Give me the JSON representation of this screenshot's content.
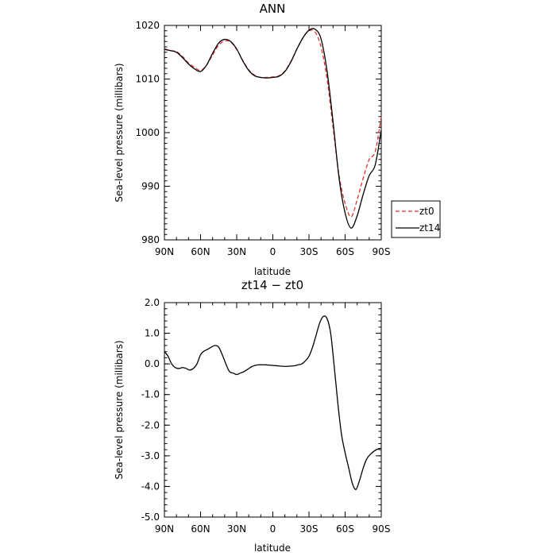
{
  "colors": {
    "zt0": "#e0302a",
    "zt14": "#000000"
  },
  "chart_data": [
    {
      "type": "line",
      "title": "ANN",
      "xlabel": "latitude",
      "ylabel": "Sea-level pressure (millibars)",
      "xlim": [
        90,
        -90
      ],
      "ylim": [
        980,
        1020
      ],
      "xticks": [
        90,
        60,
        30,
        0,
        -30,
        -60,
        -90
      ],
      "xtick_labels": [
        "90N",
        "60N",
        "30N",
        "0",
        "30S",
        "60S",
        "90S"
      ],
      "yticks": [
        980,
        990,
        1000,
        1010,
        1020
      ],
      "ytick_labels": [
        "980",
        "990",
        "1000",
        "1010",
        "1020"
      ],
      "legend": {
        "placement": "right",
        "entries": [
          "zt0",
          "zt14"
        ]
      },
      "series": [
        {
          "name": "zt0",
          "style": "dashed",
          "color": "#e0302a",
          "x": [
            90,
            85,
            80,
            75,
            70,
            65,
            60,
            55,
            50,
            45,
            40,
            35,
            30,
            25,
            20,
            15,
            10,
            5,
            0,
            -5,
            -10,
            -15,
            -20,
            -25,
            -30,
            -35,
            -40,
            -45,
            -50,
            -55,
            -60,
            -65,
            -70,
            -75,
            -80,
            -85,
            -90
          ],
          "y": [
            1015.5,
            1015.3,
            1015.1,
            1014.2,
            1013.0,
            1012.2,
            1011.6,
            1012.6,
            1014.5,
            1016.3,
            1017.1,
            1016.9,
            1015.5,
            1013.5,
            1011.7,
            1010.7,
            1010.3,
            1010.3,
            1010.4,
            1010.6,
            1011.5,
            1013.3,
            1015.6,
            1017.7,
            1019.0,
            1018.8,
            1016.0,
            1010.0,
            1001.0,
            992.0,
            986.8,
            984.3,
            987.5,
            991.5,
            995.0,
            996.5,
            1003.0
          ]
        },
        {
          "name": "zt14",
          "style": "solid",
          "color": "#000000",
          "x": [
            90,
            85,
            80,
            75,
            70,
            65,
            60,
            55,
            50,
            45,
            40,
            35,
            30,
            25,
            20,
            15,
            10,
            5,
            0,
            -5,
            -10,
            -15,
            -20,
            -25,
            -30,
            -35,
            -40,
            -45,
            -50,
            -55,
            -60,
            -65,
            -70,
            -75,
            -80,
            -85,
            -90
          ],
          "y": [
            1015.6,
            1015.3,
            1015.0,
            1014.0,
            1012.8,
            1011.9,
            1011.4,
            1012.6,
            1014.8,
            1016.7,
            1017.4,
            1017.0,
            1015.6,
            1013.4,
            1011.6,
            1010.6,
            1010.3,
            1010.2,
            1010.3,
            1010.5,
            1011.4,
            1013.2,
            1015.6,
            1017.7,
            1019.1,
            1019.3,
            1017.5,
            1011.5,
            1002.0,
            991.5,
            985.0,
            982.2,
            984.5,
            988.5,
            992.0,
            994.0,
            1000.5
          ]
        }
      ]
    },
    {
      "type": "line",
      "title": "zt14 − zt0",
      "xlabel": "latitude",
      "ylabel": "Sea-level pressure (millibars)",
      "xlim": [
        90,
        -90
      ],
      "ylim": [
        -5.0,
        2.0
      ],
      "xticks": [
        90,
        60,
        30,
        0,
        -30,
        -60,
        -90
      ],
      "xtick_labels": [
        "90N",
        "60N",
        "30N",
        "0",
        "30S",
        "60S",
        "90S"
      ],
      "yticks": [
        2.0,
        1.0,
        0.0,
        -1.0,
        -2.0,
        -3.0,
        -4.0,
        -5.0
      ],
      "ytick_labels": [
        "2.0",
        "1.0",
        "0.0",
        "-1.0",
        "-2.0",
        "-3.0",
        "-4.0",
        "-5.0"
      ],
      "series": [
        {
          "style": "solid",
          "color": "#000000",
          "x": [
            90,
            87,
            84,
            81,
            78,
            75,
            72,
            69,
            66,
            63,
            60,
            57,
            54,
            51,
            48,
            45,
            42,
            39,
            36,
            33,
            30,
            27,
            24,
            21,
            18,
            15,
            12,
            9,
            6,
            3,
            0,
            -3,
            -6,
            -9,
            -12,
            -15,
            -18,
            -21,
            -24,
            -27,
            -30,
            -33,
            -36,
            -39,
            -42,
            -45,
            -48,
            -51,
            -54,
            -57,
            -60,
            -63,
            -66,
            -69,
            -72,
            -75,
            -78,
            -81,
            -84,
            -87,
            -90
          ],
          "y": [
            0.4,
            0.25,
            0.0,
            -0.12,
            -0.15,
            -0.12,
            -0.15,
            -0.2,
            -0.15,
            0.0,
            0.3,
            0.42,
            0.48,
            0.55,
            0.6,
            0.55,
            0.3,
            0.0,
            -0.25,
            -0.3,
            -0.35,
            -0.3,
            -0.25,
            -0.18,
            -0.1,
            -0.05,
            -0.03,
            -0.03,
            -0.03,
            -0.04,
            -0.05,
            -0.06,
            -0.07,
            -0.08,
            -0.08,
            -0.07,
            -0.06,
            -0.03,
            0.0,
            0.1,
            0.25,
            0.55,
            0.95,
            1.35,
            1.55,
            1.48,
            1.0,
            -0.1,
            -1.3,
            -2.3,
            -2.9,
            -3.4,
            -3.9,
            -4.1,
            -3.8,
            -3.4,
            -3.1,
            -2.95,
            -2.85,
            -2.78,
            -2.75
          ]
        }
      ]
    }
  ]
}
